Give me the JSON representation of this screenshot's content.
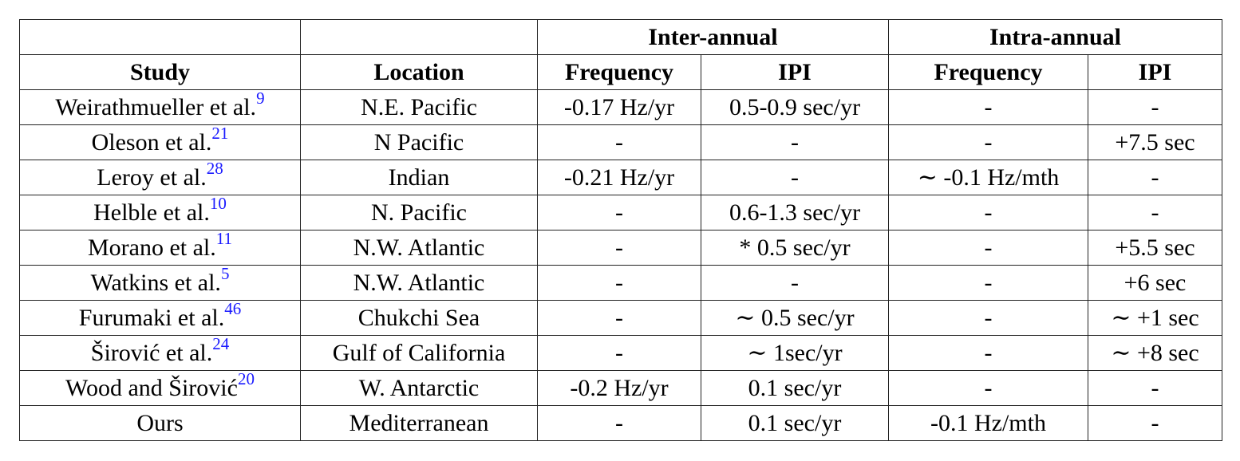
{
  "group_headers": [
    "",
    "",
    "Inter-annual",
    "Intra-annual"
  ],
  "column_headers": [
    "Study",
    "Location",
    "Frequency",
    "IPI",
    "Frequency",
    "IPI"
  ],
  "rows": [
    {
      "study": "Weirathmueller et al.",
      "ref": "9",
      "location": "N.E. Pacific",
      "inter_freq": "-0.17 Hz/yr",
      "inter_ipi": "0.5-0.9 sec/yr",
      "intra_freq": "-",
      "intra_ipi": "-"
    },
    {
      "study": "Oleson et al.",
      "ref": "21",
      "location": "N Pacific",
      "inter_freq": "-",
      "inter_ipi": "-",
      "intra_freq": "-",
      "intra_ipi": "+7.5 sec"
    },
    {
      "study": "Leroy et al.",
      "ref": "28",
      "location": "Indian",
      "inter_freq": "-0.21 Hz/yr",
      "inter_ipi": "-",
      "intra_freq": "∼ -0.1 Hz/mth",
      "intra_ipi": "-"
    },
    {
      "study": "Helble et al.",
      "ref": "10",
      "location": "N. Pacific",
      "inter_freq": "-",
      "inter_ipi": "0.6-1.3 sec/yr",
      "intra_freq": "-",
      "intra_ipi": "-"
    },
    {
      "study": "Morano et al.",
      "ref": "11",
      "location": "N.W. Atlantic",
      "inter_freq": "-",
      "inter_ipi": "* 0.5 sec/yr",
      "intra_freq": "-",
      "intra_ipi": "+5.5 sec"
    },
    {
      "study": "Watkins et al.",
      "ref": "5",
      "location": "N.W. Atlantic",
      "inter_freq": "-",
      "inter_ipi": "-",
      "intra_freq": "-",
      "intra_ipi": "+6 sec"
    },
    {
      "study": "Furumaki et al.",
      "ref": "46",
      "location": "Chukchi Sea",
      "inter_freq": "-",
      "inter_ipi": "∼ 0.5 sec/yr",
      "intra_freq": "-",
      "intra_ipi": "∼ +1 sec"
    },
    {
      "study": "Širović et al.",
      "ref": "24",
      "location": "Gulf of California",
      "inter_freq": "-",
      "inter_ipi": "∼ 1sec/yr",
      "intra_freq": "-",
      "intra_ipi": "∼ +8 sec"
    },
    {
      "study": "Wood and Širović",
      "ref": "20",
      "location": "W. Antarctic",
      "inter_freq": "-0.2 Hz/yr",
      "inter_ipi": "0.1 sec/yr",
      "intra_freq": "-",
      "intra_ipi": "-"
    },
    {
      "study": "Ours",
      "ref": "",
      "location": "Mediterranean",
      "inter_freq": "-",
      "inter_ipi": "0.1 sec/yr",
      "intra_freq": "-0.1 Hz/mth",
      "intra_ipi": "-"
    }
  ]
}
